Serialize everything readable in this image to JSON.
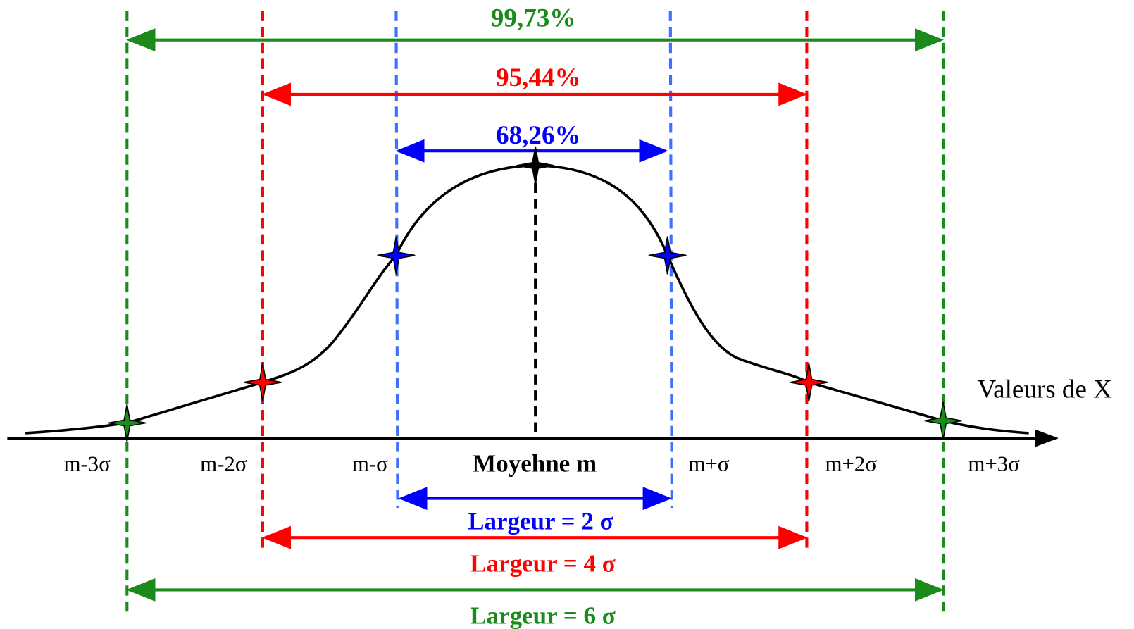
{
  "top_labels": [
    "99,73%",
    "95,44%",
    "68,26%"
  ],
  "axis_label": "Valeurs de X",
  "tick_labels": [
    "m-3σ",
    "m-2σ",
    "m-σ",
    "m+σ",
    "m+2σ",
    "m+3σ"
  ],
  "mean_label": "Moyehne m",
  "width_labels": [
    "Largeur = 2 σ",
    "Largeur = 4 σ",
    "Largeur = 6 σ"
  ]
}
